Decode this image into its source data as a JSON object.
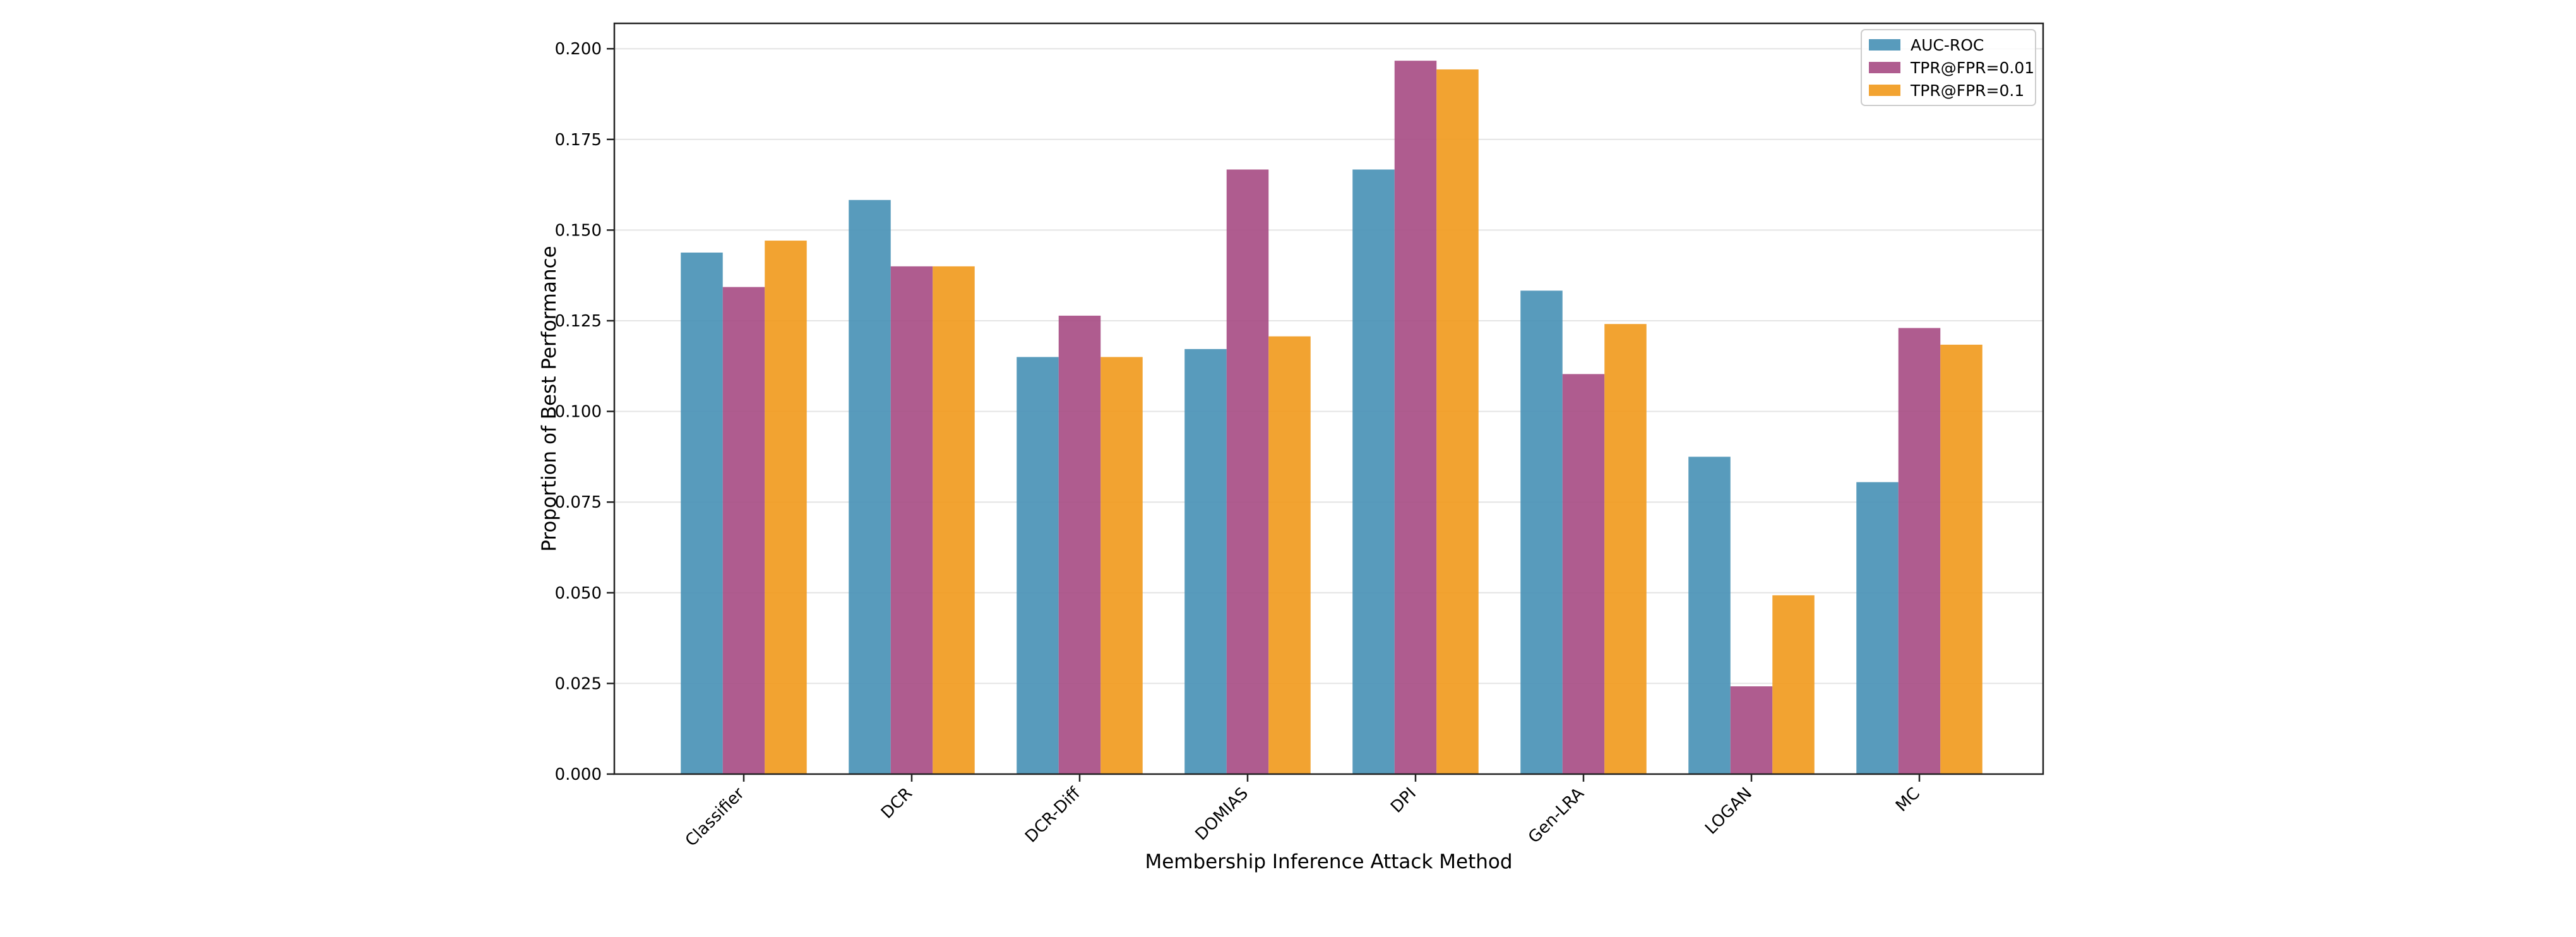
{
  "chart_data": {
    "type": "bar",
    "title": "",
    "xlabel": "Membership Inference Attack Method",
    "ylabel": "Proportion of Best Performance",
    "ylim": [
      0,
      0.207
    ],
    "yticks": [
      "0.000",
      "0.025",
      "0.050",
      "0.075",
      "0.100",
      "0.125",
      "0.150",
      "0.175",
      "0.200"
    ],
    "categories": [
      "Classifier",
      "DCR",
      "DCR-Diff",
      "DOMIAS",
      "DPI",
      "Gen-LRA",
      "LOGAN",
      "MC"
    ],
    "series": [
      {
        "name": "AUC-ROC",
        "color": "#4a93b6",
        "values": [
          0.1438,
          0.1583,
          0.115,
          0.1172,
          0.1667,
          0.1333,
          0.0875,
          0.0805
        ]
      },
      {
        "name": "TPR@FPR=0.01",
        "color": "#a84e85",
        "values": [
          0.1343,
          0.14,
          0.1264,
          0.1667,
          0.1967,
          0.1103,
          0.0242,
          0.123
        ]
      },
      {
        "name": "TPR@FPR=0.1",
        "color": "#f19b1f",
        "values": [
          0.1471,
          0.14,
          0.115,
          0.1207,
          0.1943,
          0.1241,
          0.0493,
          0.1184
        ]
      }
    ],
    "grid": true,
    "legend": "top-right"
  }
}
